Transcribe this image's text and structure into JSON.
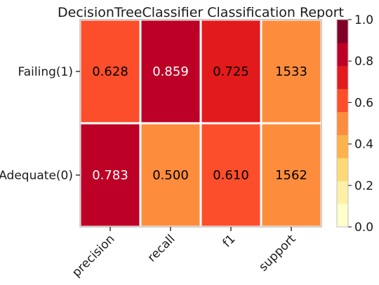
{
  "chart_data": {
    "type": "heatmap",
    "title": "DecisionTreeClassifier Classification Report",
    "columns": [
      "precision",
      "recall",
      "f1",
      "support"
    ],
    "rows": [
      "Failing(1)",
      "Adequate(0)"
    ],
    "cells": [
      [
        {
          "label": "0.628",
          "level": 0.628
        },
        {
          "label": "0.859",
          "level": 0.859
        },
        {
          "label": "0.725",
          "level": 0.725
        },
        {
          "label": "1533",
          "level": 0.48
        }
      ],
      [
        {
          "label": "0.783",
          "level": 0.783
        },
        {
          "label": "0.500",
          "level": 0.5
        },
        {
          "label": "0.610",
          "level": 0.61
        },
        {
          "label": "1562",
          "level": 0.49
        }
      ]
    ],
    "colorbar": {
      "min": 0.0,
      "max": 1.0,
      "ticks": [
        "0.0",
        "0.2",
        "0.4",
        "0.6",
        "0.8",
        "1.0"
      ],
      "colors": [
        "#ffffcc",
        "#fff0a8",
        "#fed976",
        "#feb24c",
        "#fd8d3c",
        "#fc4e2a",
        "#e31a1c",
        "#bd0026",
        "#800026"
      ]
    },
    "grid": false,
    "legend": "right"
  }
}
